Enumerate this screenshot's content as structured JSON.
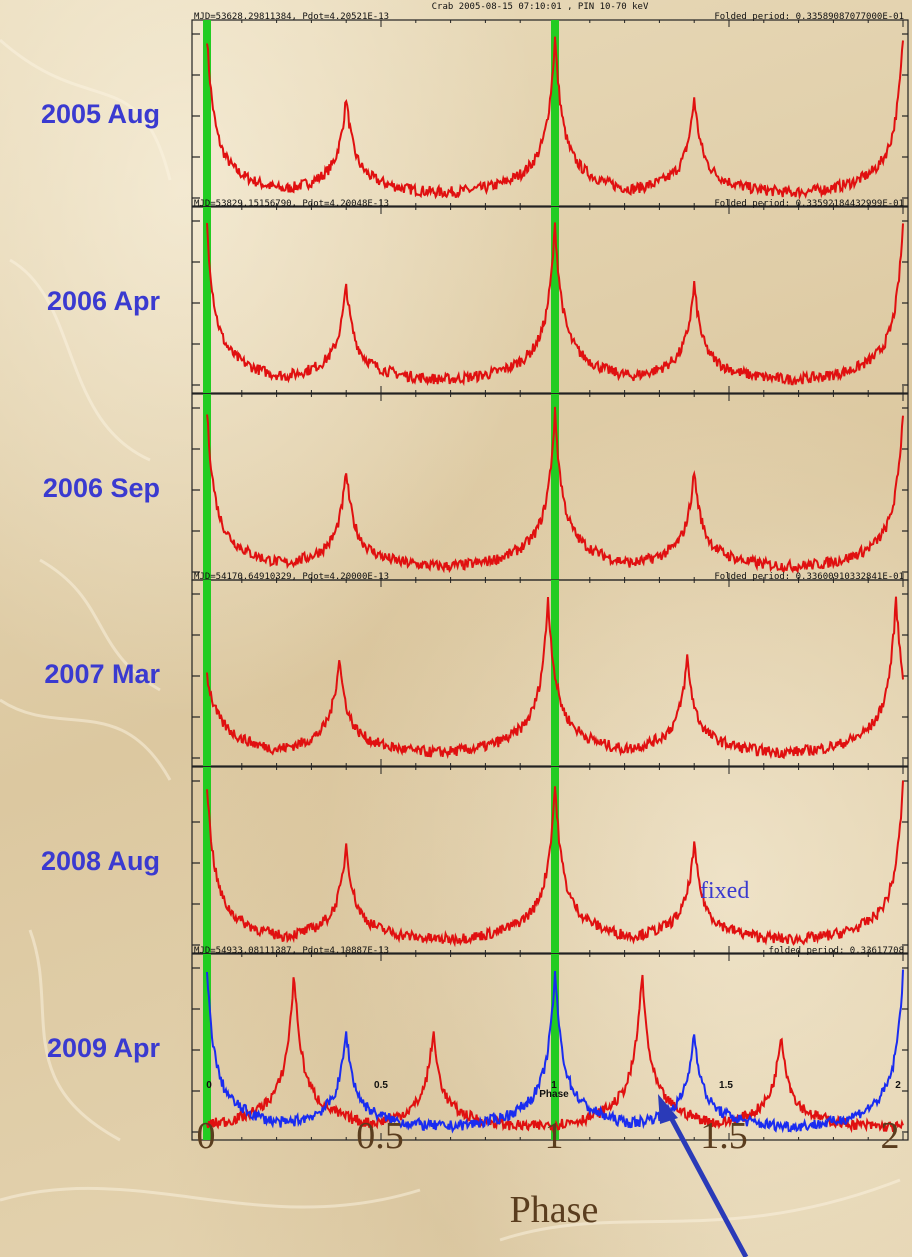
{
  "chart_data": {
    "type": "line",
    "header_caption": "Crab 2005-08-15 07:10:01 , PIN 10-70 keV",
    "panel_headers": [
      {
        "left": "MJD=53628.29811384, Pdot=4.20521E-13",
        "right": "Folded period: 0.33589087077000E-01"
      },
      {
        "left": "MJD=53829.15156790, Pdot=4.20048E-13",
        "right": "Folded period: 0.33592184432999E-01"
      },
      {
        "left": "",
        "right": ""
      },
      {
        "left": "MJD=54170.64910329, Pdot=4.20000E-13",
        "right": "Folded period: 0.33600910332841E-01"
      },
      {
        "left": "",
        "right": ""
      },
      {
        "left": "MJD=54933.08111387, Pdot=4.19887E-13",
        "right": "folded period: 0.33617708"
      }
    ],
    "panels": [
      {
        "label": "2005 Aug",
        "series": [
          {
            "color": "#e01010",
            "peaks": [
              0.0,
              0.4,
              1.0,
              1.4,
              2.0
            ]
          }
        ]
      },
      {
        "label": "2006 Apr",
        "series": [
          {
            "color": "#e01010",
            "peaks": [
              0.0,
              0.4,
              1.0,
              1.4,
              2.0
            ]
          }
        ]
      },
      {
        "label": "2006 Sep",
        "series": [
          {
            "color": "#e01010",
            "peaks": [
              0.0,
              0.4,
              1.0,
              1.4,
              2.0
            ]
          }
        ]
      },
      {
        "label": "2007 Mar",
        "series": [
          {
            "color": "#e01010",
            "peaks": [
              -0.02,
              0.38,
              0.98,
              1.38,
              1.98
            ]
          }
        ]
      },
      {
        "label": "2008 Aug",
        "series": [
          {
            "color": "#e01010",
            "peaks": [
              0.0,
              0.4,
              1.0,
              1.4,
              2.0
            ]
          }
        ]
      },
      {
        "label": "2009 Apr",
        "series": [
          {
            "color": "#e01010",
            "peaks": [
              0.25,
              0.65,
              1.25,
              1.65
            ]
          },
          {
            "color": "#1a2cf0",
            "peaks": [
              0.0,
              0.4,
              1.0,
              1.4,
              2.0
            ]
          }
        ]
      }
    ],
    "x_ticks_small": [
      "0",
      "0.5",
      "1",
      "1.5",
      "2"
    ],
    "x_label_small": "Phase",
    "x_ticks": [
      "0",
      "0.5",
      "1",
      "1.5",
      "2"
    ],
    "xlabel": "Phase",
    "xlim": [
      0,
      2
    ],
    "reference_phases": [
      0,
      1
    ],
    "reference_color": "#22cc22",
    "annotation": "fixed"
  }
}
